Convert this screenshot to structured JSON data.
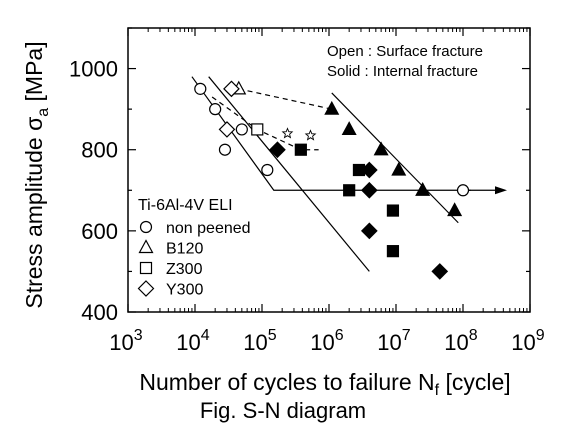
{
  "chart_data": {
    "type": "scatter",
    "title": "",
    "xlabel": "Number of cycles to failure N",
    "xlabel_sub": "f",
    "xlabel_unit": " [cycle]",
    "ylabel": "Stress amplitude σ",
    "ylabel_sub": "a",
    "ylabel_unit": " [MPa]",
    "x_scale": "log",
    "xlim": [
      1000,
      1000000000
    ],
    "ylim": [
      400,
      1100
    ],
    "x_ticks": [
      {
        "value": 1000,
        "base": "10",
        "exp": "3"
      },
      {
        "value": 10000,
        "base": "10",
        "exp": "4"
      },
      {
        "value": 100000,
        "base": "10",
        "exp": "5"
      },
      {
        "value": 1000000,
        "base": "10",
        "exp": "6"
      },
      {
        "value": 10000000,
        "base": "10",
        "exp": "7"
      },
      {
        "value": 100000000,
        "base": "10",
        "exp": "8"
      },
      {
        "value": 1000000000,
        "base": "10",
        "exp": "9"
      }
    ],
    "y_ticks": [
      {
        "value": 400,
        "label": "400"
      },
      {
        "value": 600,
        "label": "600"
      },
      {
        "value": 800,
        "label": "800"
      },
      {
        "value": 1000,
        "label": "1000"
      }
    ],
    "grid": false,
    "legend_title": "Ti-6Al-4V ELI",
    "legend_position": "lower-left",
    "notes": [
      "Open : Surface fracture",
      "Solid : Internal fracture"
    ],
    "series": [
      {
        "name": "non peened",
        "marker": "circle",
        "points": [
          {
            "x": 12000,
            "y": 950,
            "filled": false
          },
          {
            "x": 20000,
            "y": 900,
            "filled": false
          },
          {
            "x": 28000,
            "y": 800,
            "filled": false
          },
          {
            "x": 50000,
            "y": 850,
            "filled": false
          },
          {
            "x": 120000,
            "y": 750,
            "filled": false
          },
          {
            "x": 100000000,
            "y": 700,
            "filled": false,
            "runout": true
          }
        ]
      },
      {
        "name": "B120",
        "marker": "triangle",
        "points": [
          {
            "x": 45000,
            "y": 950,
            "filled": false
          },
          {
            "x": 1100000,
            "y": 900,
            "filled": true
          },
          {
            "x": 2000000,
            "y": 850,
            "filled": true
          },
          {
            "x": 6000000,
            "y": 800,
            "filled": true
          },
          {
            "x": 11000000,
            "y": 750,
            "filled": true
          },
          {
            "x": 25000000,
            "y": 700,
            "filled": true
          },
          {
            "x": 75000000,
            "y": 650,
            "filled": true
          }
        ]
      },
      {
        "name": "Z300",
        "marker": "square",
        "points": [
          {
            "x": 85000,
            "y": 850,
            "filled": false
          },
          {
            "x": 380000,
            "y": 800,
            "filled": true
          },
          {
            "x": 2000000,
            "y": 700,
            "filled": true
          },
          {
            "x": 2800000,
            "y": 750,
            "filled": true
          },
          {
            "x": 9000000,
            "y": 650,
            "filled": true
          },
          {
            "x": 9000000,
            "y": 550,
            "filled": true
          }
        ]
      },
      {
        "name": "Y300",
        "marker": "diamond",
        "points": [
          {
            "x": 35000,
            "y": 950,
            "filled": false
          },
          {
            "x": 30000,
            "y": 850,
            "filled": false
          },
          {
            "x": 170000,
            "y": 800,
            "filled": true
          },
          {
            "x": 4000000,
            "y": 700,
            "filled": true
          },
          {
            "x": 4000000,
            "y": 750,
            "filled": true
          },
          {
            "x": 4000000,
            "y": 600,
            "filled": true
          },
          {
            "x": 45000000,
            "y": 500,
            "filled": true
          }
        ]
      },
      {
        "name": "",
        "marker": "star",
        "points": [
          {
            "x": 240000,
            "y": 840,
            "filled": false
          },
          {
            "x": 530000,
            "y": 835,
            "filled": false
          }
        ]
      }
    ],
    "fit_lines": [
      {
        "style": "solid",
        "points": [
          [
            9000,
            980
          ],
          [
            150000,
            700
          ],
          [
            130000000,
            700
          ]
        ]
      },
      {
        "style": "solid",
        "points": [
          [
            16000,
            980
          ],
          [
            4000000,
            500
          ]
        ]
      },
      {
        "style": "solid",
        "points": [
          [
            1100000,
            940
          ],
          [
            85000000,
            620
          ]
        ]
      },
      {
        "style": "dashed",
        "points": [
          [
            45000,
            950
          ],
          [
            1100000,
            900
          ]
        ]
      },
      {
        "style": "dashed",
        "points": [
          [
            18000,
            930
          ],
          [
            85000,
            850
          ],
          [
            380000,
            800
          ],
          [
            700000,
            800
          ]
        ]
      }
    ],
    "caption": "Fig. S-N diagram"
  }
}
